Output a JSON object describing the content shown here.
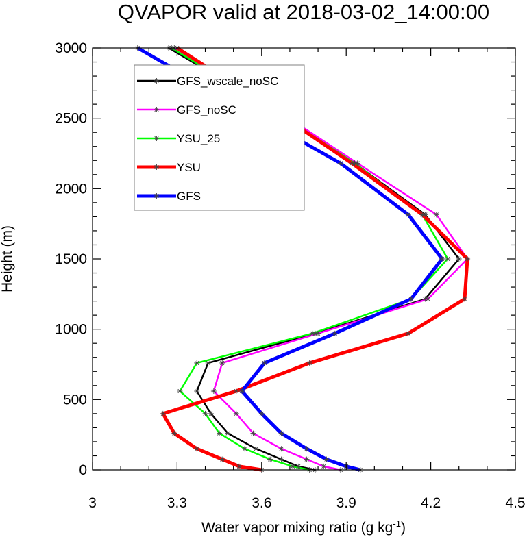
{
  "chart_data": {
    "type": "line",
    "title": "QVAPOR valid at 2018-03-02_14:00:00",
    "xlabel": "Water vapor mixing ratio (g kg",
    "xlabel_superscript": "-1",
    "xlabel_close": ")",
    "ylabel": "Height (m)",
    "xlim": [
      3.0,
      4.5
    ],
    "ylim": [
      0,
      3000
    ],
    "xticks": [
      3.0,
      3.3,
      3.6,
      3.9,
      4.2,
      4.5
    ],
    "xtick_labels": [
      "3",
      "3.3",
      "3.6",
      "3.9",
      "4.2",
      "4.5"
    ],
    "yticks": [
      0,
      500,
      1000,
      1500,
      2000,
      2500,
      3000
    ],
    "ytick_labels": [
      "0",
      "500",
      "1000",
      "1500",
      "2000",
      "2500",
      "3000"
    ],
    "grid": false,
    "legend_position": "top-left",
    "series": [
      {
        "name": "GFS_wscale_noSC",
        "color": "#000000",
        "width": 2.5,
        "points": [
          [
            3.79,
            0
          ],
          [
            3.73,
            25
          ],
          [
            3.67,
            75
          ],
          [
            3.58,
            150
          ],
          [
            3.48,
            260
          ],
          [
            3.42,
            400
          ],
          [
            3.37,
            560
          ],
          [
            3.41,
            760
          ],
          [
            3.79,
            970
          ],
          [
            4.18,
            1215
          ],
          [
            4.3,
            1500
          ],
          [
            4.18,
            1815
          ],
          [
            3.93,
            2180
          ],
          [
            3.63,
            2575
          ],
          [
            3.27,
            3000
          ]
        ]
      },
      {
        "name": "GFS_noSC",
        "color": "#ff00ff",
        "width": 2.5,
        "points": [
          [
            3.88,
            0
          ],
          [
            3.82,
            25
          ],
          [
            3.76,
            75
          ],
          [
            3.67,
            150
          ],
          [
            3.57,
            260
          ],
          [
            3.51,
            400
          ],
          [
            3.43,
            560
          ],
          [
            3.46,
            760
          ],
          [
            3.8,
            970
          ],
          [
            4.19,
            1215
          ],
          [
            4.33,
            1500
          ],
          [
            4.22,
            1815
          ],
          [
            3.94,
            2180
          ],
          [
            3.64,
            2575
          ],
          [
            3.29,
            3000
          ]
        ]
      },
      {
        "name": "YSU_25",
        "color": "#00ff00",
        "width": 2.5,
        "points": [
          [
            3.77,
            0
          ],
          [
            3.71,
            25
          ],
          [
            3.63,
            75
          ],
          [
            3.54,
            150
          ],
          [
            3.45,
            260
          ],
          [
            3.4,
            400
          ],
          [
            3.31,
            560
          ],
          [
            3.37,
            760
          ],
          [
            3.78,
            970
          ],
          [
            4.13,
            1215
          ],
          [
            4.26,
            1500
          ],
          [
            4.17,
            1815
          ],
          [
            3.93,
            2180
          ],
          [
            3.63,
            2575
          ],
          [
            3.28,
            3000
          ]
        ]
      },
      {
        "name": "YSU",
        "color": "#ff0000",
        "width": 5,
        "points": [
          [
            3.6,
            0
          ],
          [
            3.52,
            25
          ],
          [
            3.46,
            75
          ],
          [
            3.37,
            150
          ],
          [
            3.29,
            260
          ],
          [
            3.25,
            400
          ],
          [
            3.51,
            560
          ],
          [
            3.77,
            760
          ],
          [
            4.12,
            970
          ],
          [
            4.32,
            1215
          ],
          [
            4.33,
            1500
          ],
          [
            4.17,
            1815
          ],
          [
            3.92,
            2180
          ],
          [
            3.63,
            2575
          ],
          [
            3.3,
            3000
          ]
        ]
      },
      {
        "name": "GFS",
        "color": "#0000ff",
        "width": 5,
        "points": [
          [
            3.95,
            0
          ],
          [
            3.9,
            25
          ],
          [
            3.83,
            75
          ],
          [
            3.76,
            150
          ],
          [
            3.67,
            260
          ],
          [
            3.6,
            400
          ],
          [
            3.53,
            560
          ],
          [
            3.61,
            760
          ],
          [
            3.86,
            970
          ],
          [
            4.13,
            1215
          ],
          [
            4.24,
            1500
          ],
          [
            4.12,
            1815
          ],
          [
            3.88,
            2180
          ],
          [
            3.53,
            2575
          ],
          [
            3.16,
            3000
          ]
        ]
      }
    ]
  }
}
